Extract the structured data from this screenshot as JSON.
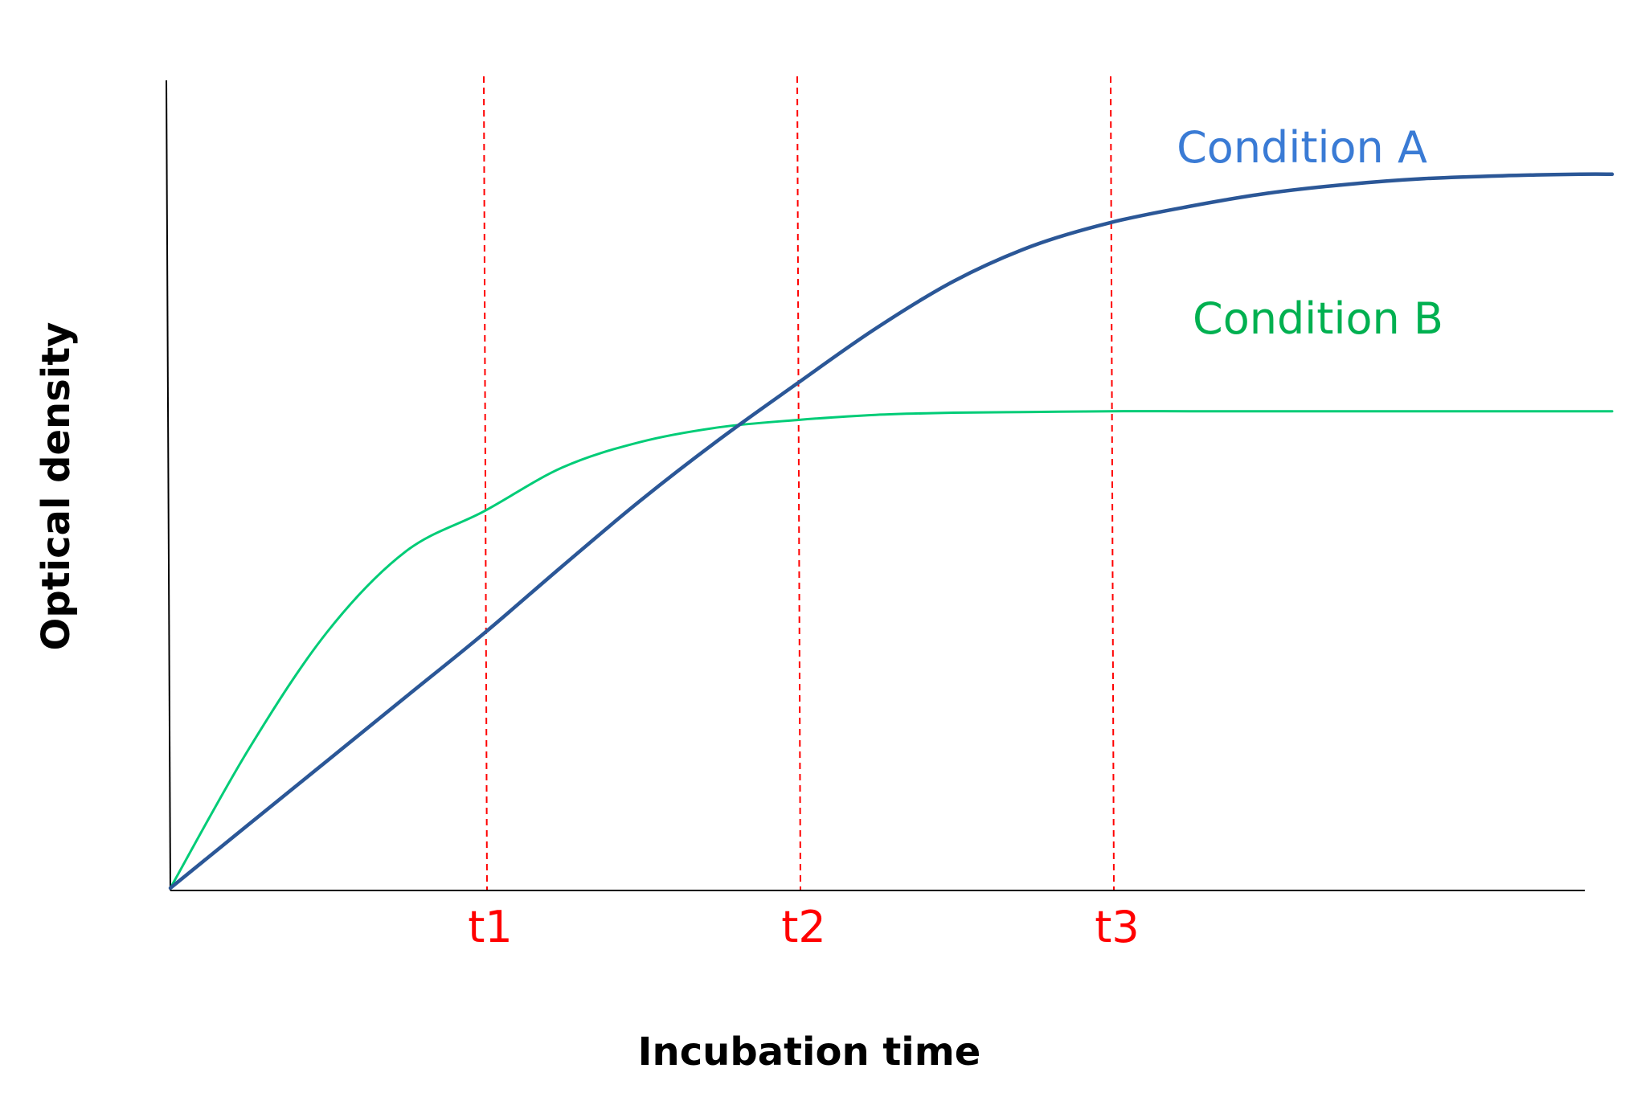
{
  "chart_data": {
    "type": "line",
    "title": "",
    "xlabel": "Incubation time",
    "ylabel": "Optical density",
    "grid": false,
    "legend": "direct labels near curve ends",
    "xlim": [
      0,
      4.55
    ],
    "ylim": [
      0,
      1.0
    ],
    "x_ticks": [
      {
        "value": 1,
        "label": "t1"
      },
      {
        "value": 2,
        "label": "t2"
      },
      {
        "value": 3,
        "label": "t3"
      }
    ],
    "reference_lines": [
      {
        "x": 1,
        "label": "t1",
        "style": "dashed",
        "color": "#ff0000"
      },
      {
        "x": 2,
        "label": "t2",
        "style": "dashed",
        "color": "#ff0000"
      },
      {
        "x": 3,
        "label": "t3",
        "style": "dashed",
        "color": "#ff0000"
      }
    ],
    "x": [
      0,
      0.25,
      0.5,
      0.75,
      1,
      1.25,
      1.5,
      1.75,
      2,
      2.25,
      2.5,
      2.75,
      3,
      3.25,
      3.5,
      3.75,
      4,
      4.25,
      4.5,
      4.6
    ],
    "series": [
      {
        "name": "Condition A",
        "color": "#2b5797",
        "label_color": "#3a7bd5",
        "values": [
          0.0,
          0.087,
          0.174,
          0.261,
          0.348,
          0.44,
          0.53,
          0.613,
          0.69,
          0.765,
          0.83,
          0.878,
          0.91,
          0.932,
          0.95,
          0.962,
          0.97,
          0.974,
          0.976,
          0.976
        ]
      },
      {
        "name": "Condition B",
        "color": "#00cc77",
        "label_color": "#00b050",
        "values": [
          0.0,
          0.19,
          0.35,
          0.46,
          0.515,
          0.575,
          0.61,
          0.63,
          0.64,
          0.647,
          0.65,
          0.651,
          0.652,
          0.652,
          0.652,
          0.652,
          0.652,
          0.652,
          0.652,
          0.652
        ]
      }
    ]
  }
}
